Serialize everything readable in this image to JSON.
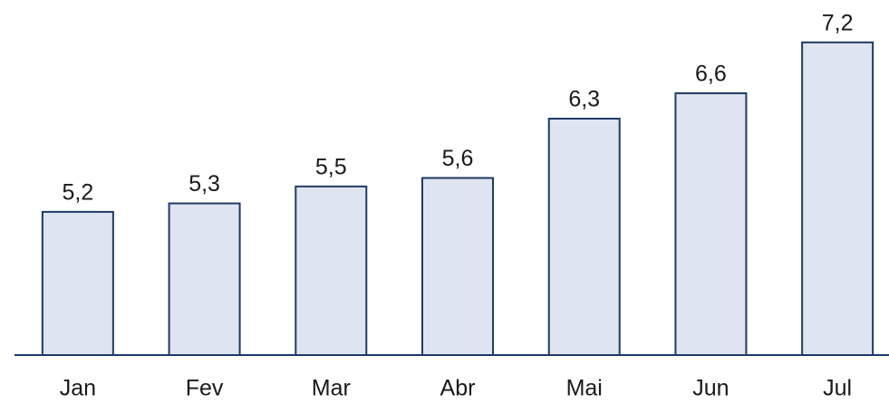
{
  "chart_data": {
    "type": "bar",
    "categories": [
      "Jan",
      "Fev",
      "Mar",
      "Abr",
      "Mai",
      "Jun",
      "Jul"
    ],
    "values": [
      5.2,
      5.3,
      5.5,
      5.6,
      6.3,
      6.6,
      7.2
    ],
    "value_labels": [
      "5,2",
      "5,3",
      "5,5",
      "5,6",
      "6,3",
      "6,6",
      "7,2"
    ],
    "color": "#dee4f0",
    "edge_color": "#1e3a66",
    "ylim": [
      3.51,
      7.7
    ]
  }
}
